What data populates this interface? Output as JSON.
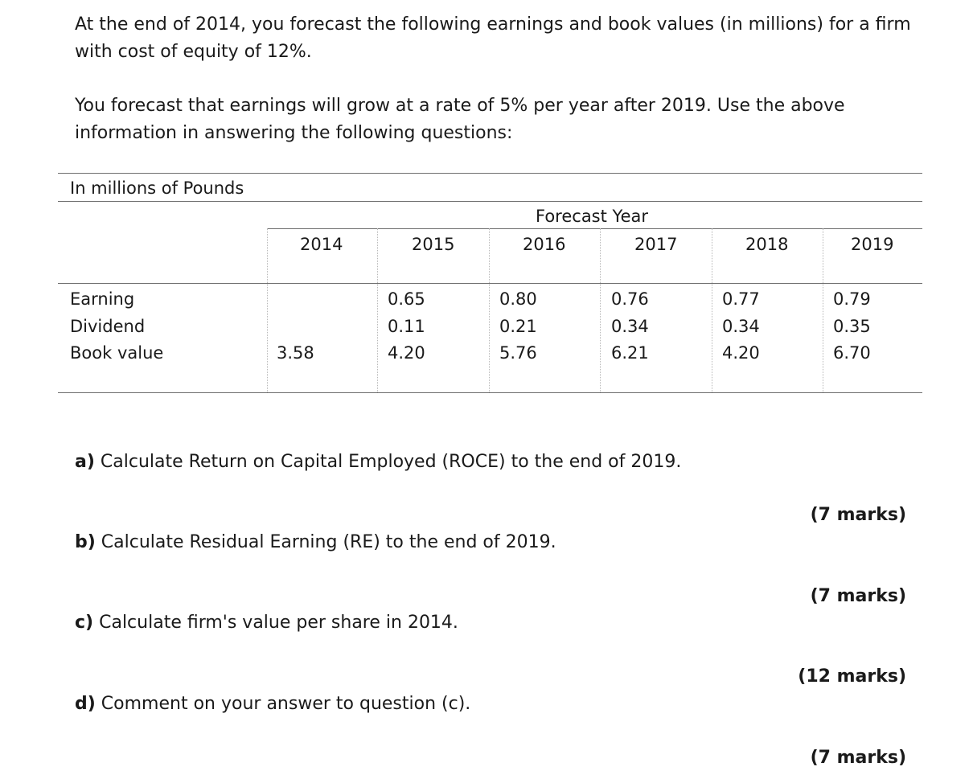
{
  "intro": {
    "line1": "At the end of 2014, you forecast the following earnings and book values (in millions) for a firm with cost of equity of 12%.",
    "line2": "You forecast that earnings will grow at a rate of 5% per year after 2019. Use the above information in answering the following questions:"
  },
  "table": {
    "unit_label": "In millions of  Pounds",
    "group_header": "Forecast Year",
    "years": [
      "2014",
      "2015",
      "2016",
      "2017",
      "2018",
      "2019"
    ],
    "rows": [
      {
        "label": "Earning",
        "values": [
          "",
          "0.65",
          "0.80",
          "0.76",
          "0.77",
          "0.79"
        ]
      },
      {
        "label": "Dividend",
        "values": [
          "",
          "0.11",
          "0.21",
          "0.34",
          "0.34",
          "0.35"
        ]
      },
      {
        "label": "Book value",
        "values": [
          "3.58",
          "4.20",
          "5.76",
          "6.21",
          "4.20",
          "6.70"
        ]
      }
    ]
  },
  "questions": [
    {
      "letter": "a)",
      "text": " Calculate Return on Capital Employed (ROCE) to the end of 2019.",
      "marks": "(7 marks)"
    },
    {
      "letter": "b)",
      "text": " Calculate Residual Earning (RE) to the end of 2019.",
      "marks": "(7 marks)"
    },
    {
      "letter": "c)",
      "text": " Calculate firm's value per share in 2014.",
      "marks": "(12 marks)"
    },
    {
      "letter": "d)",
      "text": " Comment on your answer to question (c).",
      "marks": "(7 marks)"
    }
  ]
}
